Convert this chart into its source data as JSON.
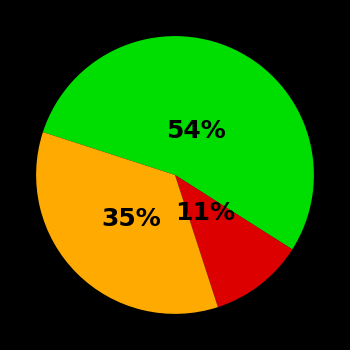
{
  "slices": [
    54,
    11,
    35
  ],
  "colors": [
    "#00dd00",
    "#dd0000",
    "#ffaa00"
  ],
  "labels": [
    "54%",
    "11%",
    "35%"
  ],
  "background_color": "#000000",
  "text_color": "#000000",
  "font_size": 18,
  "font_weight": "bold",
  "startangle": 162,
  "counterclock": false,
  "label_offsets": [
    0.35,
    0.35,
    0.45
  ]
}
